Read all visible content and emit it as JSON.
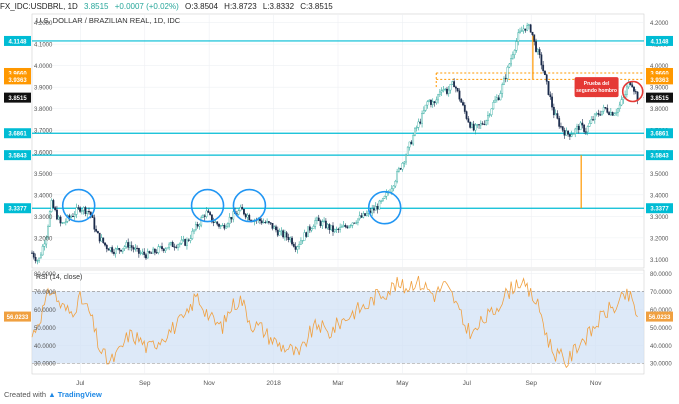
{
  "header": {
    "symbol": "FX_IDC:USDBRL, 1D",
    "close_value": "3.8515",
    "change": "+0.0007 (+0.02%)",
    "open": "O:3.8504",
    "high": "H:3.8723",
    "low": "L:3.8332",
    "close": "C:3.8515"
  },
  "footer": {
    "prefix": "Created with",
    "brand": "TradingView"
  },
  "chart_data": [
    {
      "type": "line",
      "title": "U.S. DOLLAR / BRAZILIAN REAL, 1D, IDC",
      "series": [
        {
          "name": "USDBRL",
          "style": "candlestick"
        }
      ],
      "x_ticks": [
        "Jul",
        "Sep",
        "Nov",
        "2018",
        "Mar",
        "May",
        "Jul",
        "Sep",
        "Nov"
      ],
      "x_tick_pos": [
        1.5,
        3.5,
        5.5,
        7.5,
        9.5,
        11.5,
        13.5,
        15.5,
        17.5
      ],
      "x_range": [
        0,
        19
      ],
      "ylim": [
        3.06,
        4.24
      ],
      "y_ticks": [
        3.1,
        3.2,
        3.3,
        3.4,
        3.5,
        3.6,
        3.7,
        3.8,
        3.9,
        4.0,
        4.1,
        4.2
      ],
      "y_tick_labels": [
        "3.1000",
        "3.2000",
        "3.3000",
        "3.4000",
        "3.5000",
        "3.6000",
        "3.7000",
        "3.8000",
        "3.9000",
        "4.0000",
        "4.1000",
        "4.2000"
      ],
      "price_path": [
        [
          0.0,
          3.13
        ],
        [
          0.2,
          3.09
        ],
        [
          0.45,
          3.22
        ],
        [
          0.6,
          3.36
        ],
        [
          0.9,
          3.26
        ],
        [
          1.2,
          3.3
        ],
        [
          1.5,
          3.34
        ],
        [
          1.8,
          3.32
        ],
        [
          2.0,
          3.22
        ],
        [
          2.3,
          3.16
        ],
        [
          2.6,
          3.14
        ],
        [
          3.0,
          3.17
        ],
        [
          3.3,
          3.13
        ],
        [
          3.6,
          3.12
        ],
        [
          4.0,
          3.15
        ],
        [
          4.4,
          3.17
        ],
        [
          4.8,
          3.18
        ],
        [
          5.1,
          3.25
        ],
        [
          5.4,
          3.32
        ],
        [
          5.6,
          3.28
        ],
        [
          5.9,
          3.25
        ],
        [
          6.2,
          3.3
        ],
        [
          6.5,
          3.33
        ],
        [
          6.8,
          3.29
        ],
        [
          7.1,
          3.28
        ],
        [
          7.4,
          3.26
        ],
        [
          7.7,
          3.22
        ],
        [
          8.0,
          3.2
        ],
        [
          8.2,
          3.16
        ],
        [
          8.5,
          3.22
        ],
        [
          8.8,
          3.28
        ],
        [
          9.1,
          3.26
        ],
        [
          9.4,
          3.23
        ],
        [
          9.7,
          3.25
        ],
        [
          10.0,
          3.28
        ],
        [
          10.3,
          3.3
        ],
        [
          10.6,
          3.33
        ],
        [
          10.9,
          3.37
        ],
        [
          11.2,
          3.45
        ],
        [
          11.5,
          3.55
        ],
        [
          11.7,
          3.62
        ],
        [
          11.9,
          3.7
        ],
        [
          12.1,
          3.76
        ],
        [
          12.3,
          3.84
        ],
        [
          12.5,
          3.82
        ],
        [
          12.7,
          3.9
        ],
        [
          12.9,
          3.88
        ],
        [
          13.1,
          3.92
        ],
        [
          13.3,
          3.84
        ],
        [
          13.5,
          3.76
        ],
        [
          13.7,
          3.7
        ],
        [
          13.9,
          3.72
        ],
        [
          14.1,
          3.75
        ],
        [
          14.3,
          3.82
        ],
        [
          14.5,
          3.86
        ],
        [
          14.7,
          3.95
        ],
        [
          14.9,
          4.05
        ],
        [
          15.1,
          4.14
        ],
        [
          15.3,
          4.18
        ],
        [
          15.5,
          4.17
        ],
        [
          15.6,
          4.1
        ],
        [
          15.8,
          4.02
        ],
        [
          16.0,
          3.9
        ],
        [
          16.2,
          3.78
        ],
        [
          16.4,
          3.72
        ],
        [
          16.6,
          3.68
        ],
        [
          16.8,
          3.69
        ],
        [
          17.0,
          3.72
        ],
        [
          17.2,
          3.7
        ],
        [
          17.4,
          3.75
        ],
        [
          17.6,
          3.78
        ],
        [
          17.8,
          3.8
        ],
        [
          18.0,
          3.78
        ],
        [
          18.2,
          3.8
        ],
        [
          18.4,
          3.86
        ],
        [
          18.5,
          3.91
        ],
        [
          18.6,
          3.93
        ],
        [
          18.8,
          3.85
        ]
      ],
      "horizontal_lines": [
        {
          "value": 4.1148,
          "label": "4.1148",
          "color": "#00bcd4"
        },
        {
          "value": 3.6861,
          "label": "3.6861",
          "color": "#00bcd4"
        },
        {
          "value": 3.5843,
          "label": "3.5843",
          "color": "#00bcd4"
        },
        {
          "value": 3.3377,
          "label": "3.3377",
          "color": "#00bcd4"
        }
      ],
      "neckline_band": {
        "top": 3.966,
        "bottom": 3.9363,
        "labels": [
          "3.9660",
          "3.9363"
        ],
        "color": "#ff9800",
        "x_start": 12.55
      },
      "current_price": {
        "value": 3.8515,
        "label": "3.8515"
      },
      "circles": [
        {
          "x": 1.45,
          "y": 3.35
        },
        {
          "x": 5.45,
          "y": 3.35
        },
        {
          "x": 6.75,
          "y": 3.35
        },
        {
          "x": 10.95,
          "y": 3.34
        },
        {
          "x": 18.65,
          "y": 3.88
        }
      ],
      "projections": [
        {
          "x": 15.55,
          "from": 4.14,
          "to": 3.9363
        },
        {
          "x": 17.05,
          "from": 3.5843,
          "to": 3.3377
        }
      ],
      "annotation": {
        "text_lines": [
          "Prueba del",
          "segundo hombro"
        ],
        "x": 17.9,
        "y": 3.9,
        "color": "#e53935"
      },
      "colors": {
        "up": "#26a69a",
        "down": "#1a2a4a",
        "support": "#00bcd4",
        "band": "#ff9800",
        "annotation": "#e53935",
        "circle": "#2196f3"
      }
    },
    {
      "type": "line",
      "title": "RSI (14, close)",
      "ylim": [
        24,
        82
      ],
      "y_ticks": [
        30,
        40,
        50,
        60,
        70,
        80
      ],
      "y_tick_labels": [
        "30.0000",
        "40.0000",
        "50.0000",
        "60.0000",
        "70.0000",
        "80.0000"
      ],
      "band": [
        30,
        70
      ],
      "current_value": {
        "value": 56.0233,
        "label": "56.0233"
      },
      "rsi_path": [
        [
          0.0,
          45
        ],
        [
          0.3,
          58
        ],
        [
          0.6,
          72
        ],
        [
          0.9,
          62
        ],
        [
          1.2,
          58
        ],
        [
          1.5,
          66
        ],
        [
          1.8,
          58
        ],
        [
          2.1,
          38
        ],
        [
          2.4,
          30
        ],
        [
          2.7,
          36
        ],
        [
          3.0,
          46
        ],
        [
          3.3,
          44
        ],
        [
          3.6,
          38
        ],
        [
          4.0,
          44
        ],
        [
          4.4,
          50
        ],
        [
          4.8,
          56
        ],
        [
          5.1,
          68
        ],
        [
          5.3,
          62
        ],
        [
          5.6,
          54
        ],
        [
          5.9,
          50
        ],
        [
          6.2,
          62
        ],
        [
          6.5,
          66
        ],
        [
          6.8,
          52
        ],
        [
          7.1,
          50
        ],
        [
          7.4,
          44
        ],
        [
          7.7,
          40
        ],
        [
          8.0,
          38
        ],
        [
          8.3,
          34
        ],
        [
          8.6,
          46
        ],
        [
          8.9,
          52
        ],
        [
          9.2,
          46
        ],
        [
          9.5,
          52
        ],
        [
          9.8,
          56
        ],
        [
          10.1,
          60
        ],
        [
          10.4,
          62
        ],
        [
          10.7,
          68
        ],
        [
          11.0,
          70
        ],
        [
          11.3,
          74
        ],
        [
          11.6,
          72
        ],
        [
          11.9,
          76
        ],
        [
          12.2,
          73
        ],
        [
          12.5,
          68
        ],
        [
          12.8,
          74
        ],
        [
          13.1,
          66
        ],
        [
          13.4,
          52
        ],
        [
          13.7,
          46
        ],
        [
          14.0,
          54
        ],
        [
          14.3,
          58
        ],
        [
          14.6,
          66
        ],
        [
          14.9,
          72
        ],
        [
          15.1,
          76
        ],
        [
          15.3,
          72
        ],
        [
          15.6,
          66
        ],
        [
          15.8,
          58
        ],
        [
          16.0,
          44
        ],
        [
          16.2,
          36
        ],
        [
          16.4,
          34
        ],
        [
          16.6,
          30
        ],
        [
          16.8,
          36
        ],
        [
          17.0,
          42
        ],
        [
          17.3,
          46
        ],
        [
          17.6,
          54
        ],
        [
          17.9,
          60
        ],
        [
          18.2,
          62
        ],
        [
          18.4,
          68
        ],
        [
          18.6,
          66
        ],
        [
          18.8,
          56
        ]
      ],
      "color": "#f0a040",
      "band_color": "#cfe0f5"
    }
  ]
}
